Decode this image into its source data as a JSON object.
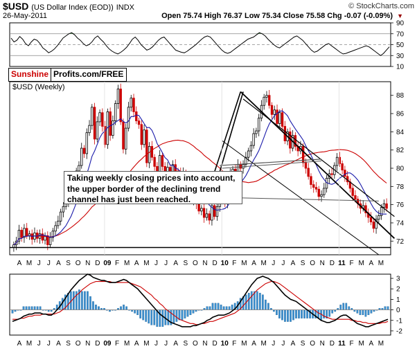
{
  "header": {
    "symbol": "$USD",
    "description": "(US Dollar Index (EOD))",
    "exchange": "INDX",
    "date": "26-May-2011",
    "brand": "© StockCharts.com",
    "open_label": "Open",
    "open": "75.74",
    "high_label": "High",
    "high": "76.37",
    "low_label": "Low",
    "low": "75.34",
    "close_label": "Close",
    "close": "75.58",
    "chg_label": "Chg",
    "chg": "-0.07 (-0.09%)"
  },
  "logo": {
    "part1": "Sunshine",
    "part2": "Profits.com/FREE"
  },
  "annotation": "Taking weekly closing prices into account, the upper border of the declining trend channel has just been reached.",
  "colors": {
    "bull": "#000000",
    "bear": "#cc0000",
    "sma_short": "#cc0000",
    "sma_long": "#1a1aaa",
    "rsi_fill": "#4a8a4a",
    "macd_hist": "#3a8fd0",
    "macd_line": "#000000",
    "signal_line": "#cc0000"
  },
  "chart_data": [
    {
      "type": "line",
      "title": "",
      "ylim": [
        10,
        90
      ],
      "yticks": [
        10,
        30,
        50,
        70,
        90
      ],
      "reference_lines": [
        30,
        50,
        70
      ],
      "series": [
        {
          "values": [
            62,
            55,
            58,
            65,
            60,
            52,
            48,
            55,
            60,
            58,
            52,
            44,
            40,
            35,
            38,
            42,
            48,
            55,
            62,
            66,
            70,
            72,
            68,
            62,
            58,
            52,
            48,
            50,
            55,
            62,
            66,
            60,
            55,
            48,
            42,
            38,
            35,
            33,
            36,
            40,
            45,
            52,
            60,
            64,
            58,
            50,
            45,
            40,
            42,
            46,
            52,
            58,
            62,
            64,
            58,
            52,
            46,
            40,
            38,
            36,
            35,
            38,
            42,
            46,
            50,
            55,
            60,
            64,
            66,
            64,
            58,
            52,
            46,
            40,
            36,
            34,
            36,
            40,
            44,
            48,
            52,
            56,
            60,
            62,
            64,
            68,
            72,
            70,
            66,
            60,
            55,
            50,
            46,
            44,
            48,
            52,
            56,
            60,
            64,
            66,
            62,
            58,
            52,
            46,
            40,
            36,
            38,
            42,
            46,
            50,
            52,
            48,
            44,
            40,
            36,
            33,
            34,
            36,
            38,
            40,
            42,
            44,
            46,
            48,
            46,
            42,
            38,
            34,
            30,
            34,
            40,
            46
          ]
        }
      ]
    },
    {
      "type": "candlestick",
      "title": "$USD (Weekly)",
      "ylim": [
        70.5,
        89.5
      ],
      "yticks": [
        72,
        74,
        76,
        78,
        80,
        82,
        84,
        86,
        88
      ],
      "x_labels": [
        "A",
        "M",
        "J",
        "J",
        "A",
        "S",
        "O",
        "N",
        "D",
        "09",
        "F",
        "M",
        "A",
        "M",
        "J",
        "J",
        "A",
        "S",
        "O",
        "N",
        "D",
        "10",
        "F",
        "M",
        "A",
        "M",
        "J",
        "J",
        "A",
        "S",
        "O",
        "N",
        "D",
        "11",
        "F",
        "M",
        "A",
        "M"
      ],
      "close": [
        71.6,
        72.0,
        73.2,
        72.4,
        73.4,
        72.6,
        72.8,
        72.2,
        72.9,
        72.3,
        72.8,
        72.1,
        72.6,
        71.6,
        72.4,
        73.1,
        73.7,
        74.2,
        75.2,
        75.8,
        76.2,
        77.4,
        77.9,
        78.7,
        79.7,
        80.3,
        82.2,
        81.6,
        83.9,
        84.7,
        86.7,
        83.2,
        85.1,
        86.1,
        84.6,
        82.6,
        86.2,
        83.6,
        85.2,
        87.1,
        88.7,
        85.1,
        82.1,
        84.4,
        86.7,
        87.7,
        86.2,
        85.2,
        84.8,
        82.6,
        84.2,
        80.6,
        82.4,
        81.2,
        80.2,
        79.6,
        81.4,
        80.2,
        79.2,
        80.1,
        78.4,
        80.4,
        79.7,
        79.6,
        77.6,
        79.5,
        78.2,
        77.2,
        76.4,
        76.7,
        76.1,
        75.3,
        75.6,
        74.6,
        75.0,
        74.3,
        75.9,
        74.7,
        75.8,
        77.1,
        76.6,
        76.2,
        78.1,
        79.4,
        79.9,
        79.6,
        80.4,
        80.0,
        80.4,
        81.2,
        81.9,
        82.5,
        83.8,
        84.1,
        85.5,
        86.9,
        87.8,
        88.0,
        86.9,
        85.9,
        86.4,
        84.9,
        86.1,
        84.6,
        83.0,
        84.0,
        82.2,
        83.6,
        82.4,
        81.9,
        82.4,
        80.6,
        80.0,
        79.1,
        78.2,
        77.9,
        77.7,
        76.9,
        77.1,
        77.8,
        78.9,
        79.4,
        79.3,
        80.3,
        81.2,
        80.5,
        79.8,
        79.1,
        78.5,
        77.8,
        77.0,
        76.6,
        76.1,
        75.6,
        75.9,
        75.1,
        74.6,
        74.1,
        73.4,
        74.4,
        74.8,
        75.7,
        76.1,
        75.6
      ]
    },
    {
      "type": "line",
      "title": "",
      "ylim": [
        -2.4,
        3.4
      ],
      "yticks": [
        -2,
        -1,
        0,
        1,
        2,
        3
      ],
      "series": [
        {
          "values": [
            -1.1,
            -1.0,
            -0.9,
            -0.8,
            -0.6,
            -0.5,
            -0.4,
            -0.4,
            -0.3,
            -0.3,
            -0.3,
            -0.4,
            -0.4,
            -0.5,
            -0.5,
            -0.3,
            0.0,
            0.3,
            0.7,
            1.1,
            1.5,
            1.9,
            2.2,
            2.5,
            2.8,
            3.0,
            3.2,
            3.4,
            3.3,
            3.1,
            3.0,
            2.9,
            2.8,
            2.8,
            2.7,
            2.6,
            2.6,
            2.6,
            2.7,
            2.8,
            2.9,
            2.8,
            2.6,
            2.4,
            2.2,
            2.0,
            1.7,
            1.4,
            1.1,
            0.8,
            0.5,
            0.2,
            -0.1,
            -0.4,
            -0.6,
            -0.8,
            -1.0,
            -1.2,
            -1.3,
            -1.4,
            -1.5,
            -1.6,
            -1.6,
            -1.6,
            -1.6,
            -1.5,
            -1.5,
            -1.4,
            -1.3,
            -1.2,
            -1.0,
            -0.9,
            -0.7,
            -0.6,
            -0.5,
            -0.5,
            -0.5,
            -0.4,
            -0.3,
            -0.1,
            0.1,
            0.4,
            0.8,
            1.2,
            1.6,
            2.0,
            2.4,
            2.7,
            3.0,
            3.1,
            3.2,
            3.1,
            3.0,
            2.8,
            2.6,
            2.3,
            2.0,
            1.7,
            1.4,
            1.2,
            1.0,
            0.9,
            0.8,
            0.6,
            0.4,
            0.2,
            0.0,
            -0.2,
            -0.4,
            -0.6,
            -0.8,
            -1.0,
            -1.1,
            -1.2,
            -1.2,
            -1.1,
            -1.0,
            -0.8,
            -0.6,
            -0.5,
            -0.5,
            -0.7,
            -0.9,
            -1.1,
            -1.3,
            -1.4,
            -1.5,
            -1.6,
            -1.6,
            -1.5,
            -1.4,
            -1.3,
            -1.2,
            -1.1,
            -1.0,
            -0.9
          ]
        },
        {
          "values": [
            -0.9,
            -0.9,
            -0.9,
            -0.8,
            -0.8,
            -0.7,
            -0.6,
            -0.6,
            -0.5,
            -0.5,
            -0.5,
            -0.4,
            -0.4,
            -0.4,
            -0.4,
            -0.4,
            -0.3,
            -0.2,
            0.0,
            0.2,
            0.5,
            0.8,
            1.1,
            1.4,
            1.6,
            1.9,
            2.1,
            2.3,
            2.5,
            2.6,
            2.7,
            2.7,
            2.7,
            2.7,
            2.7,
            2.7,
            2.6,
            2.6,
            2.6,
            2.6,
            2.6,
            2.6,
            2.6,
            2.5,
            2.4,
            2.3,
            2.2,
            2.0,
            1.8,
            1.6,
            1.4,
            1.1,
            0.9,
            0.6,
            0.4,
            0.1,
            -0.1,
            -0.3,
            -0.5,
            -0.7,
            -0.9,
            -1.0,
            -1.1,
            -1.2,
            -1.3,
            -1.3,
            -1.4,
            -1.4,
            -1.3,
            -1.3,
            -1.2,
            -1.1,
            -1.1,
            -1.0,
            -0.9,
            -0.8,
            -0.7,
            -0.6,
            -0.5,
            -0.4,
            -0.3,
            -0.1,
            0.1,
            0.4,
            0.7,
            1.0,
            1.3,
            1.6,
            1.9,
            2.1,
            2.3,
            2.5,
            2.6,
            2.7,
            2.7,
            2.6,
            2.5,
            2.3,
            2.1,
            1.9,
            1.7,
            1.5,
            1.3,
            1.1,
            0.9,
            0.7,
            0.5,
            0.3,
            0.1,
            -0.1,
            -0.3,
            -0.4,
            -0.6,
            -0.7,
            -0.8,
            -0.9,
            -0.9,
            -0.9,
            -0.9,
            -0.9,
            -0.9,
            -0.9,
            -1.0,
            -1.0,
            -1.1,
            -1.1,
            -1.2,
            -1.2,
            -1.3,
            -1.3,
            -1.3,
            -1.3,
            -1.3,
            -1.2,
            -1.2,
            -1.1
          ]
        }
      ]
    }
  ]
}
